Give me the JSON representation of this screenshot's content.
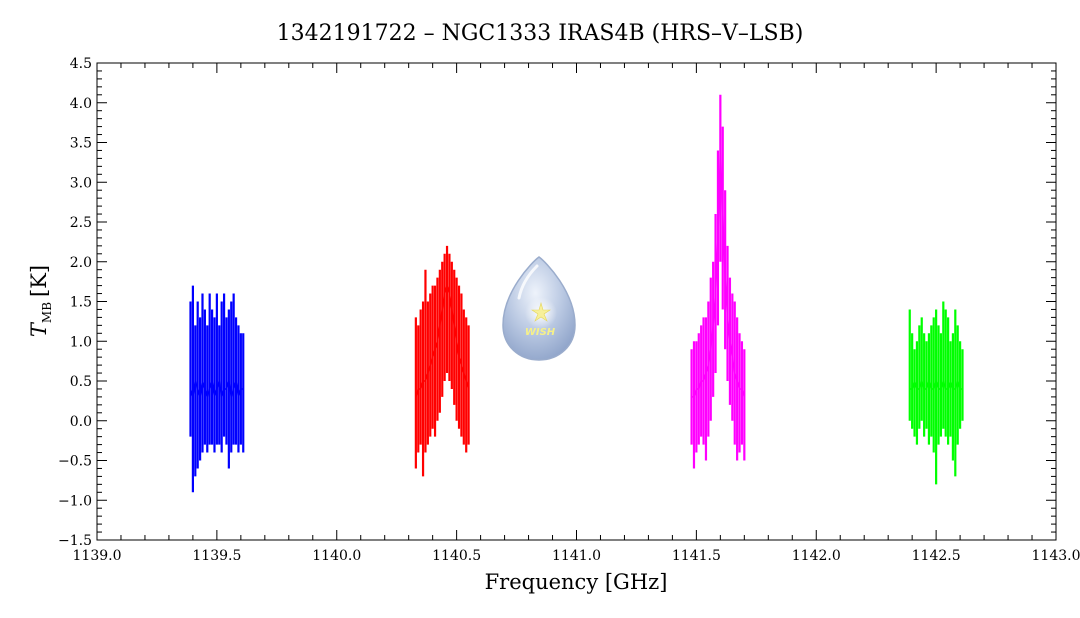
{
  "chart_data": {
    "type": "line",
    "title": "1342191722 – NGC1333 IRAS4B (HRS–V–LSB)",
    "xlabel": "Frequency [GHz]",
    "ylabel_main": "T",
    "ylabel_sub": "MB",
    "ylabel_unit": "[K]",
    "xlim": [
      1139.0,
      1143.0
    ],
    "ylim": [
      -1.5,
      4.5
    ],
    "xticks": [
      1139.0,
      1139.5,
      1140.0,
      1140.5,
      1141.0,
      1141.5,
      1142.0,
      1142.5,
      1143.0
    ],
    "xtick_labels": [
      "1139.0",
      "1139.5",
      "1140.0",
      "1140.5",
      "1141.0",
      "1141.5",
      "1142.0",
      "1142.5",
      "1143.0"
    ],
    "yticks": [
      -1.5,
      -1.0,
      -0.5,
      0.0,
      0.5,
      1.0,
      1.5,
      2.0,
      2.5,
      3.0,
      3.5,
      4.0,
      4.5
    ],
    "ytick_labels": [
      "−1.5",
      "−1.0",
      "−0.5",
      "0.0",
      "0.5",
      "1.0",
      "1.5",
      "2.0",
      "2.5",
      "3.0",
      "3.5",
      "4.0",
      "4.5"
    ],
    "grid": false,
    "logo_text": "WISH",
    "series": [
      {
        "color": "#0000ff",
        "x": [
          1139.39,
          1139.4,
          1139.41,
          1139.42,
          1139.43,
          1139.44,
          1139.45,
          1139.46,
          1139.47,
          1139.48,
          1139.49,
          1139.5,
          1139.51,
          1139.52,
          1139.53,
          1139.54,
          1139.55,
          1139.56,
          1139.57,
          1139.58,
          1139.59,
          1139.6,
          1139.61
        ],
        "y": [
          0.4,
          0.3,
          0.5,
          0.4,
          0.3,
          0.5,
          0.4,
          0.3,
          0.4,
          0.5,
          0.3,
          0.4,
          0.5,
          0.3,
          0.4,
          0.4,
          0.5,
          0.3,
          0.4,
          0.5,
          0.3,
          0.4,
          0.4
        ],
        "ymin": [
          -0.2,
          -0.9,
          -0.7,
          -0.6,
          -0.5,
          -0.4,
          -0.3,
          -0.4,
          -0.3,
          -0.3,
          -0.4,
          -0.3,
          -0.3,
          -0.4,
          -0.2,
          -0.3,
          -0.6,
          -0.4,
          -0.3,
          -0.3,
          -0.4,
          -0.3,
          -0.4
        ],
        "ymax": [
          1.5,
          1.7,
          1.2,
          1.5,
          1.3,
          1.6,
          1.4,
          1.2,
          1.6,
          1.4,
          1.3,
          1.6,
          1.2,
          1.5,
          1.6,
          1.3,
          1.4,
          1.5,
          1.6,
          1.3,
          1.2,
          1.1,
          1.1
        ]
      },
      {
        "color": "#ff0000",
        "x": [
          1140.33,
          1140.34,
          1140.35,
          1140.36,
          1140.37,
          1140.38,
          1140.39,
          1140.4,
          1140.41,
          1140.42,
          1140.43,
          1140.44,
          1140.45,
          1140.46,
          1140.47,
          1140.48,
          1140.49,
          1140.5,
          1140.51,
          1140.52,
          1140.53,
          1140.54,
          1140.55
        ],
        "y": [
          0.3,
          0.4,
          0.4,
          0.5,
          0.5,
          0.6,
          0.7,
          0.8,
          0.9,
          1.0,
          1.2,
          1.4,
          1.6,
          1.7,
          1.6,
          1.4,
          1.2,
          1.0,
          0.8,
          0.7,
          0.6,
          0.5,
          0.4
        ],
        "ymin": [
          -0.6,
          -0.4,
          -0.3,
          -0.7,
          -0.4,
          -0.3,
          -0.2,
          -0.1,
          -0.2,
          0.0,
          0.1,
          0.3,
          0.5,
          0.6,
          0.5,
          0.4,
          0.2,
          0.0,
          -0.1,
          -0.2,
          -0.3,
          -0.4,
          -0.3
        ],
        "ymax": [
          1.3,
          1.2,
          1.4,
          1.5,
          1.9,
          1.5,
          1.6,
          1.7,
          1.7,
          1.8,
          1.9,
          2.0,
          2.1,
          2.2,
          2.1,
          2.0,
          1.9,
          1.8,
          1.7,
          1.6,
          1.4,
          1.3,
          1.2
        ]
      },
      {
        "color": "#ff00ff",
        "x": [
          1141.48,
          1141.49,
          1141.5,
          1141.51,
          1141.52,
          1141.53,
          1141.54,
          1141.55,
          1141.56,
          1141.57,
          1141.58,
          1141.59,
          1141.6,
          1141.61,
          1141.62,
          1141.63,
          1141.64,
          1141.65,
          1141.66,
          1141.67,
          1141.68,
          1141.69,
          1141.7
        ],
        "y": [
          0.3,
          0.3,
          0.4,
          0.4,
          0.5,
          0.5,
          0.6,
          0.7,
          0.9,
          1.2,
          1.6,
          2.3,
          3.4,
          2.6,
          1.8,
          1.3,
          1.0,
          0.8,
          0.6,
          0.5,
          0.4,
          0.4,
          0.3
        ],
        "ymin": [
          -0.3,
          -0.6,
          -0.4,
          -0.3,
          -0.2,
          -0.3,
          -0.5,
          -0.2,
          0.0,
          0.3,
          0.6,
          1.2,
          2.0,
          1.4,
          0.9,
          0.5,
          0.2,
          0.0,
          -0.3,
          -0.5,
          -0.4,
          -0.3,
          -0.5
        ],
        "ymax": [
          0.9,
          1.0,
          1.0,
          1.1,
          1.2,
          1.3,
          1.3,
          1.5,
          1.8,
          2.0,
          2.6,
          3.4,
          4.1,
          3.7,
          2.9,
          2.2,
          1.8,
          1.6,
          1.5,
          1.3,
          1.1,
          1.0,
          0.9
        ]
      },
      {
        "color": "#00ff00",
        "x": [
          1142.39,
          1142.4,
          1142.41,
          1142.42,
          1142.43,
          1142.44,
          1142.45,
          1142.46,
          1142.47,
          1142.48,
          1142.49,
          1142.5,
          1142.51,
          1142.52,
          1142.53,
          1142.54,
          1142.55,
          1142.56,
          1142.57,
          1142.58,
          1142.59,
          1142.6,
          1142.61
        ],
        "y": [
          0.4,
          0.4,
          0.5,
          0.4,
          0.4,
          0.5,
          0.4,
          0.4,
          0.5,
          0.4,
          0.4,
          0.5,
          0.4,
          0.4,
          0.5,
          0.4,
          0.4,
          0.5,
          0.4,
          0.4,
          0.5,
          0.4,
          0.4
        ],
        "ymin": [
          0.0,
          -0.1,
          -0.2,
          -0.3,
          -0.1,
          0.0,
          -0.2,
          -0.1,
          -0.3,
          -0.2,
          -0.4,
          -0.8,
          -0.3,
          -0.2,
          -0.1,
          -0.2,
          -0.3,
          -0.2,
          -0.5,
          -0.7,
          -0.3,
          -0.1,
          0.0
        ],
        "ymax": [
          1.4,
          1.1,
          0.9,
          1.0,
          1.2,
          1.3,
          1.1,
          1.0,
          1.1,
          1.2,
          1.3,
          1.4,
          1.2,
          1.1,
          1.5,
          1.4,
          1.3,
          1.0,
          1.1,
          1.4,
          1.2,
          1.0,
          0.9
        ]
      }
    ]
  }
}
